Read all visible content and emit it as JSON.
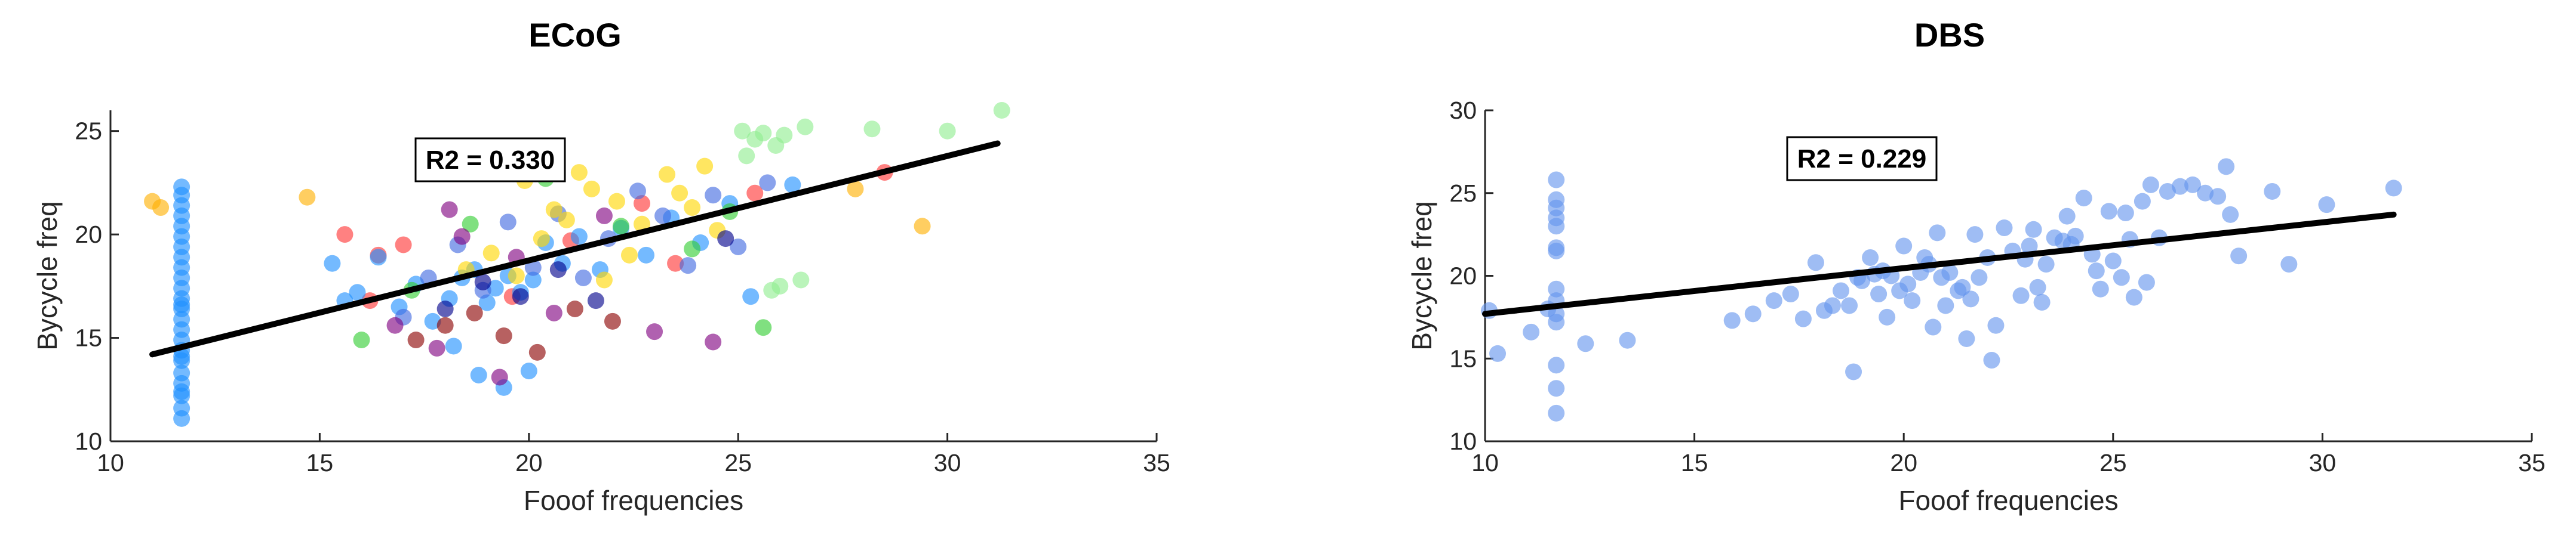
{
  "figure": {
    "panels": [
      {
        "id": "ecog",
        "title": "ECoG",
        "annotation": "R2 = 0.330"
      },
      {
        "id": "dbs",
        "title": "DBS",
        "annotation": "R2 = 0.229"
      }
    ]
  },
  "chart_data": [
    {
      "type": "scatter",
      "title": "ECoG",
      "xlabel": "Fooof frequencies",
      "ylabel": "Bycycle freq",
      "xlim": [
        10,
        35
      ],
      "ylim": [
        10,
        26
      ],
      "xticks": [
        10,
        15,
        20,
        25,
        30,
        35
      ],
      "yticks": [
        10,
        15,
        20,
        25
      ],
      "grid": false,
      "annotation": "R2 = 0.330",
      "fit_line": {
        "x": [
          11.0,
          31.2
        ],
        "y": [
          14.2,
          24.4
        ]
      },
      "colors": [
        "#4169e1",
        "#1e90ff",
        "#ffd700",
        "#ffb000",
        "#ff3333",
        "#32cd32",
        "#90ee90",
        "#800080",
        "#8b0000",
        "#00008b"
      ],
      "series": [
        {
          "color": "#1e90ff",
          "x": [
            11.7,
            11.7,
            11.7,
            11.7,
            11.7,
            11.7,
            11.7,
            11.7,
            11.7,
            11.7,
            11.7,
            11.7,
            11.7,
            11.7,
            11.7,
            11.7,
            11.7,
            11.7,
            11.7,
            11.7,
            11.7,
            11.7,
            11.7,
            11.7,
            11.7,
            11.7
          ],
          "y": [
            11.1,
            11.6,
            12.2,
            12.8,
            13.3,
            13.9,
            14.4,
            14.9,
            15.4,
            15.9,
            16.4,
            16.9,
            17.4,
            17.9,
            18.4,
            18.9,
            19.4,
            19.9,
            20.4,
            20.9,
            21.4,
            21.9,
            22.3,
            12.4,
            14.1,
            16.6
          ]
        },
        {
          "color": "#ffb000",
          "x": [
            11.0,
            11.2,
            14.7,
            29.4,
            27.8
          ],
          "y": [
            21.6,
            21.3,
            21.8,
            20.4,
            22.2
          ]
        },
        {
          "color": "#90ee90",
          "x": [
            25.1,
            25.6,
            26.1,
            26.6,
            28.2,
            30.0,
            31.3,
            25.4,
            25.9,
            25.2,
            26.5,
            26.0,
            25.8
          ],
          "y": [
            25.0,
            24.9,
            24.8,
            25.2,
            25.1,
            25.0,
            26.0,
            24.6,
            24.3,
            23.8,
            17.8,
            17.5,
            17.3
          ]
        },
        {
          "color": "#ff3333",
          "x": [
            15.6,
            16.4,
            17.0,
            16.2,
            28.5,
            25.4,
            22.7,
            19.6,
            23.5,
            21.0
          ],
          "y": [
            20.0,
            19.0,
            19.5,
            16.8,
            23.0,
            22.0,
            21.5,
            17.0,
            18.6,
            19.7
          ]
        },
        {
          "color": "#1e90ff",
          "x": [
            15.3,
            15.6,
            15.9,
            16.4,
            16.9,
            17.3,
            17.7,
            18.1,
            18.4,
            18.7,
            19.0,
            19.2,
            19.5,
            19.8,
            20.1,
            20.4,
            20.8,
            21.2,
            21.7,
            22.2,
            22.8,
            23.4,
            24.1,
            24.8,
            25.3,
            26.3,
            18.2,
            18.8,
            19.4,
            20.0
          ],
          "y": [
            18.6,
            16.8,
            17.2,
            18.9,
            16.5,
            17.6,
            15.8,
            16.9,
            17.9,
            18.3,
            16.7,
            17.4,
            18.0,
            17.2,
            17.8,
            19.6,
            18.6,
            19.9,
            18.3,
            20.3,
            19.0,
            20.8,
            19.6,
            21.5,
            17.0,
            22.4,
            14.6,
            13.2,
            12.6,
            13.4
          ]
        },
        {
          "color": "#4169e1",
          "x": [
            17.0,
            17.6,
            18.3,
            18.9,
            19.5,
            20.1,
            20.7,
            21.3,
            21.9,
            22.6,
            23.2,
            23.8,
            24.4,
            25.0,
            25.7
          ],
          "y": [
            16.0,
            17.9,
            19.5,
            17.3,
            20.6,
            18.4,
            21.0,
            17.9,
            19.8,
            22.1,
            20.9,
            18.5,
            21.9,
            19.4,
            22.5
          ]
        },
        {
          "color": "#ffd700",
          "x": [
            18.5,
            19.1,
            19.7,
            20.3,
            20.9,
            21.5,
            22.1,
            22.7,
            23.3,
            23.9,
            24.5,
            21.2,
            22.4,
            20.6,
            19.9,
            23.6,
            24.2,
            21.8
          ],
          "y": [
            18.3,
            19.1,
            18.0,
            19.8,
            20.7,
            22.2,
            21.6,
            20.5,
            22.9,
            21.3,
            20.2,
            23.0,
            19.0,
            21.2,
            22.6,
            22.0,
            23.3,
            17.8
          ]
        },
        {
          "color": "#32cd32",
          "x": [
            16.0,
            17.2,
            18.6,
            20.4,
            22.2,
            23.9,
            24.8,
            25.6
          ],
          "y": [
            14.9,
            17.3,
            20.5,
            22.7,
            20.4,
            19.3,
            21.1,
            15.5
          ]
        },
        {
          "color": "#800080",
          "x": [
            16.8,
            17.8,
            18.4,
            19.3,
            20.6,
            21.8,
            23.0,
            24.4,
            19.7,
            18.1
          ],
          "y": [
            15.6,
            14.5,
            19.9,
            13.1,
            16.2,
            20.9,
            15.3,
            14.8,
            18.9,
            21.2
          ]
        },
        {
          "color": "#8b0000",
          "x": [
            17.3,
            18.0,
            18.7,
            19.4,
            20.2,
            21.1,
            22.0
          ],
          "y": [
            14.9,
            15.6,
            16.2,
            15.1,
            14.3,
            16.4,
            15.8
          ]
        },
        {
          "color": "#00008b",
          "x": [
            18.0,
            18.9,
            19.8,
            20.7,
            21.6,
            24.7
          ],
          "y": [
            16.4,
            17.7,
            17.0,
            18.3,
            16.8,
            19.8
          ]
        }
      ]
    },
    {
      "type": "scatter",
      "title": "DBS",
      "xlabel": "Fooof frequencies",
      "ylabel": "Bycycle freq",
      "xlim": [
        10,
        35
      ],
      "ylim": [
        10,
        30
      ],
      "xticks": [
        10,
        15,
        20,
        25,
        30,
        35
      ],
      "yticks": [
        10,
        15,
        20,
        25,
        30
      ],
      "grid": false,
      "annotation": "R2 = 0.229",
      "fit_line": {
        "x": [
          10.0,
          31.7
        ],
        "y": [
          17.7,
          23.7
        ]
      },
      "series": [
        {
          "color": "#6495ed",
          "x": [
            10.1,
            10.3,
            11.1,
            11.5,
            11.7,
            11.7,
            11.7,
            11.7,
            11.7,
            11.7,
            11.7,
            11.7,
            11.7,
            11.7,
            11.7,
            11.7,
            11.7,
            11.7,
            12.4,
            13.4,
            15.9,
            16.4,
            16.9,
            17.3,
            17.6,
            17.9,
            18.1,
            18.3,
            18.5,
            18.7,
            18.9,
            19.0,
            19.2,
            19.4,
            19.5,
            19.7,
            19.9,
            20.0,
            20.1,
            20.2,
            20.4,
            20.5,
            20.6,
            20.8,
            21.0,
            21.1,
            21.3,
            21.4,
            21.6,
            21.8,
            22.0,
            22.2,
            22.4,
            22.6,
            22.8,
            23.0,
            23.2,
            23.4,
            23.6,
            23.8,
            23.9,
            24.1,
            24.3,
            24.5,
            24.7,
            24.9,
            25.0,
            25.2,
            25.4,
            25.5,
            25.7,
            25.9,
            26.1,
            26.3,
            26.6,
            26.9,
            27.2,
            27.5,
            27.7,
            27.8,
            28.0,
            28.8,
            29.2,
            30.1,
            31.7,
            18.8,
            19.6,
            20.7,
            21.5,
            22.1,
            23.3,
            24.0,
            25.3,
            19.3,
            20.9,
            22.9,
            24.6,
            25.8,
            21.7,
            23.1
          ],
          "y": [
            17.9,
            15.3,
            16.6,
            18.0,
            25.8,
            24.6,
            24.1,
            23.5,
            23.0,
            21.5,
            19.2,
            18.5,
            17.7,
            17.2,
            14.6,
            13.2,
            11.7,
            21.7,
            15.9,
            16.1,
            17.3,
            17.7,
            18.5,
            18.9,
            17.4,
            20.8,
            17.9,
            18.2,
            19.1,
            18.2,
            19.9,
            19.7,
            21.1,
            18.9,
            20.3,
            20.0,
            19.1,
            21.8,
            19.5,
            18.5,
            20.2,
            21.1,
            20.7,
            22.6,
            18.2,
            20.2,
            19.1,
            19.3,
            18.6,
            19.9,
            21.1,
            17.0,
            22.9,
            21.5,
            18.8,
            21.8,
            19.3,
            20.7,
            22.3,
            22.1,
            23.6,
            22.4,
            24.7,
            21.3,
            19.2,
            23.9,
            20.9,
            19.9,
            22.2,
            18.7,
            24.5,
            25.5,
            22.3,
            25.1,
            25.4,
            25.5,
            25.0,
            24.8,
            26.6,
            23.7,
            21.2,
            25.1,
            20.7,
            24.3,
            25.3,
            14.2,
            17.5,
            16.9,
            16.2,
            14.9,
            18.4,
            21.9,
            23.8,
            20.1,
            19.9,
            21.0,
            20.3,
            19.6,
            22.5,
            22.8
          ]
        }
      ]
    }
  ]
}
